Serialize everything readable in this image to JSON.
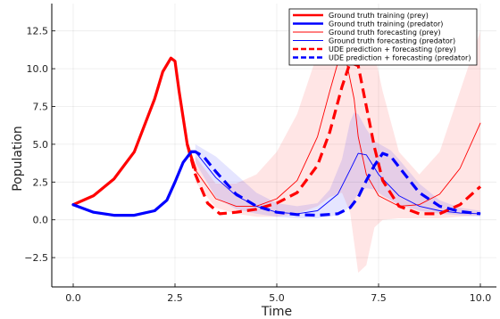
{
  "chart_data": {
    "type": "line",
    "title": "",
    "xlabel": "Time",
    "ylabel": "Population",
    "xlim": [
      -0.5,
      10.1
    ],
    "ylim": [
      -4.2,
      14.5
    ],
    "x_ticks": [
      0,
      2.5,
      5,
      7.5,
      10
    ],
    "x_tick_labels": [
      "0.0",
      "2.5",
      "5.0",
      "7.5",
      "10.0"
    ],
    "y_ticks": [
      -2.5,
      0,
      2.5,
      5,
      7.5,
      10,
      12.5
    ],
    "y_tick_labels": [
      "−2.5",
      "0.0",
      "2.5",
      "5.0",
      "7.5",
      "10.0",
      "12.5"
    ],
    "grid": true,
    "legend_position": "top-right",
    "colors": {
      "prey": "#ff0000",
      "predator": "#0000ff"
    },
    "series": [
      {
        "name": "Ground truth training (prey)",
        "color": "#ff0000",
        "style": "solid",
        "width": "thick",
        "x": [
          0,
          0.5,
          1.0,
          1.5,
          2.0,
          2.2,
          2.4,
          2.5,
          2.6,
          2.8,
          3.0
        ],
        "y": [
          1.0,
          1.6,
          2.7,
          4.5,
          8.0,
          9.8,
          10.7,
          10.5,
          8.5,
          5.0,
          3.3
        ]
      },
      {
        "name": "Ground truth training (predator)",
        "color": "#0000ff",
        "style": "solid",
        "width": "thick",
        "x": [
          0,
          0.5,
          1.0,
          1.5,
          2.0,
          2.3,
          2.5,
          2.7,
          2.9,
          3.0
        ],
        "y": [
          1.0,
          0.5,
          0.3,
          0.3,
          0.6,
          1.3,
          2.5,
          3.8,
          4.5,
          4.5
        ]
      },
      {
        "name": "Ground truth forecasting (prey)",
        "color": "#ff0000",
        "style": "solid",
        "width": "thin",
        "x": [
          3.0,
          3.5,
          4.0,
          4.5,
          5.0,
          5.5,
          6.0,
          6.3,
          6.5,
          6.7,
          6.9,
          7.0,
          7.2,
          7.5,
          8.0,
          8.5,
          9.0,
          9.5,
          10.0
        ],
        "y": [
          3.3,
          1.4,
          0.9,
          0.9,
          1.4,
          2.6,
          5.5,
          8.5,
          10.4,
          10.6,
          8.0,
          5.5,
          3.0,
          1.6,
          0.9,
          1.0,
          1.7,
          3.4,
          6.4
        ]
      },
      {
        "name": "Ground truth forecasting (predator)",
        "color": "#0000ff",
        "style": "solid",
        "width": "thin",
        "x": [
          3.0,
          3.5,
          4.0,
          4.5,
          5.0,
          5.5,
          6.0,
          6.5,
          6.8,
          7.0,
          7.2,
          7.5,
          8.0,
          8.5,
          9.0,
          9.5,
          10.0
        ],
        "y": [
          4.5,
          2.8,
          1.6,
          0.9,
          0.5,
          0.4,
          0.6,
          1.7,
          3.3,
          4.4,
          4.3,
          3.0,
          1.6,
          0.9,
          0.6,
          0.45,
          0.4
        ]
      },
      {
        "name": "UDE prediction + forecasting (prey)",
        "color": "#ff0000",
        "style": "dashed",
        "width": "thick",
        "x": [
          2.8,
          3.0,
          3.3,
          3.6,
          4.0,
          4.5,
          5.0,
          5.5,
          6.0,
          6.3,
          6.6,
          6.8,
          7.0,
          7.2,
          7.4,
          7.6,
          8.0,
          8.5,
          9.0,
          9.5,
          10.0
        ],
        "y": [
          5.0,
          3.0,
          1.1,
          0.4,
          0.5,
          0.7,
          1.1,
          1.8,
          3.6,
          5.8,
          8.8,
          10.4,
          10.2,
          7.5,
          4.8,
          2.6,
          0.9,
          0.4,
          0.4,
          1.0,
          2.2
        ]
      },
      {
        "name": "UDE prediction + forecasting (predator)",
        "color": "#0000ff",
        "style": "dashed",
        "width": "thick",
        "x": [
          2.9,
          3.0,
          3.2,
          3.5,
          4.0,
          4.5,
          5.0,
          5.5,
          6.0,
          6.5,
          6.8,
          7.0,
          7.2,
          7.4,
          7.6,
          7.8,
          8.0,
          8.5,
          9.0,
          9.5,
          10.0
        ],
        "y": [
          4.5,
          4.5,
          4.2,
          3.2,
          1.7,
          0.9,
          0.5,
          0.35,
          0.3,
          0.4,
          0.8,
          1.5,
          2.6,
          3.6,
          4.4,
          4.2,
          3.5,
          1.8,
          0.9,
          0.55,
          0.4
        ]
      }
    ],
    "bands": [
      {
        "color": "#ff0000",
        "opacity": 0.1,
        "x": [
          3.0,
          3.5,
          4.0,
          4.5,
          5.0,
          5.5,
          6.0,
          6.3,
          6.6,
          6.8,
          6.9,
          7.0,
          7.2,
          7.4,
          7.6,
          8.0,
          8.5,
          9.0,
          9.5,
          10.0
        ],
        "upper": [
          4.2,
          2.4,
          2.4,
          3.0,
          4.5,
          7.0,
          11.0,
          12.8,
          12.8,
          12.5,
          12.3,
          11.5,
          11.5,
          11.0,
          8.5,
          4.5,
          3.0,
          4.5,
          8.5,
          12.5
        ],
        "lower": [
          2.5,
          0.8,
          0.4,
          0.2,
          0.2,
          0.4,
          0.9,
          1.5,
          1.8,
          0.5,
          -1.5,
          -3.5,
          -3.0,
          -0.5,
          0.0,
          0.1,
          0.1,
          0.1,
          0.2,
          0.3
        ]
      },
      {
        "color": "#0000ff",
        "opacity": 0.1,
        "x": [
          3.0,
          3.5,
          4.0,
          4.5,
          5.0,
          5.5,
          6.0,
          6.3,
          6.6,
          6.8,
          6.9,
          7.0,
          7.2,
          7.4,
          7.6,
          7.8,
          8.0,
          8.5,
          9.0,
          9.5,
          10.0
        ],
        "upper": [
          5.0,
          4.2,
          3.0,
          1.8,
          1.1,
          0.9,
          1.1,
          2.0,
          4.0,
          6.5,
          7.1,
          7.0,
          6.0,
          5.2,
          4.9,
          4.6,
          4.0,
          2.4,
          1.3,
          0.8,
          0.6
        ],
        "lower": [
          3.8,
          1.5,
          0.7,
          0.4,
          0.2,
          0.1,
          0.1,
          0.2,
          0.4,
          0.9,
          1.3,
          1.8,
          2.1,
          2.0,
          1.6,
          1.3,
          1.0,
          0.6,
          0.4,
          0.3,
          0.2
        ]
      }
    ]
  }
}
